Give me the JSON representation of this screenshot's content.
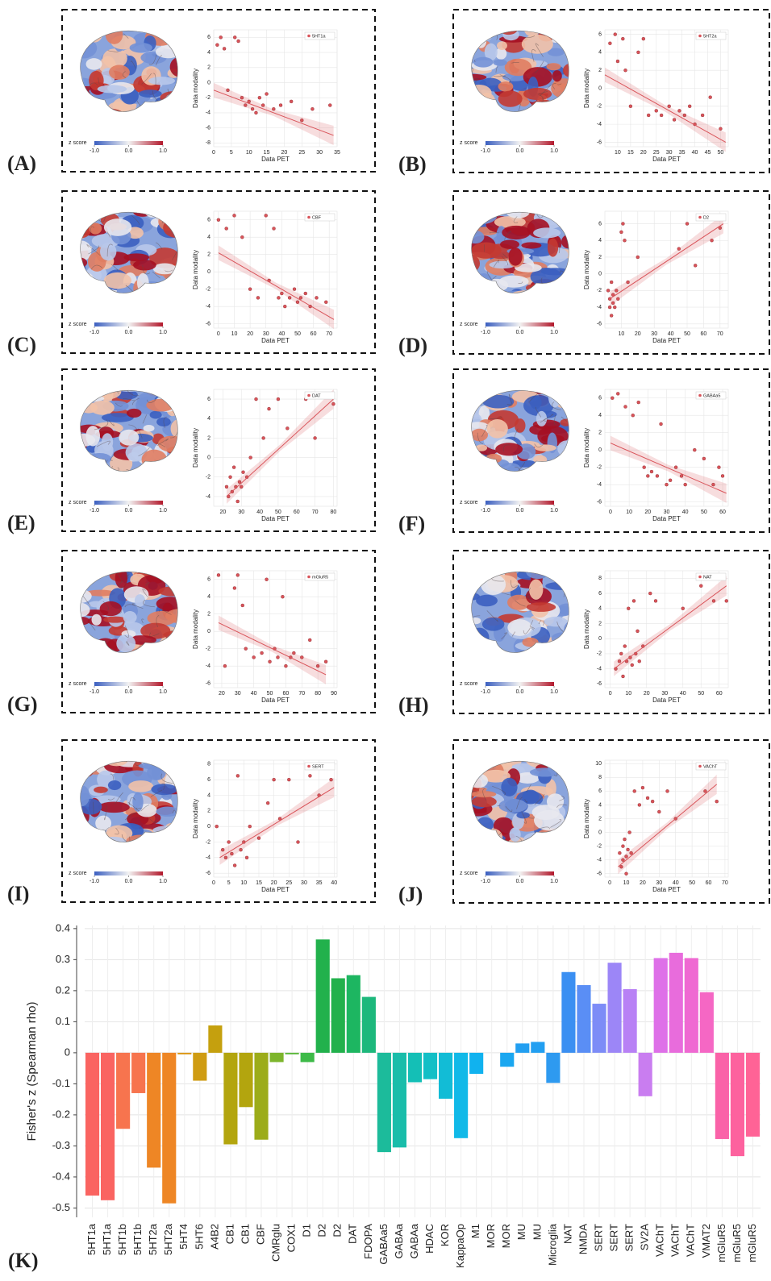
{
  "chart_data": [
    {
      "type": "scatter",
      "label": "(A)",
      "legend": "5HT1a",
      "xlabel": "Data PET",
      "ylabel": "Data modality",
      "color": "#d9545a",
      "x": [
        1,
        2,
        3,
        4,
        6,
        7,
        8,
        9,
        10,
        11,
        12,
        13,
        14,
        15,
        17,
        19,
        22,
        25,
        28,
        33
      ],
      "y": [
        5,
        6,
        4.5,
        -1,
        6,
        5.5,
        -2,
        -3,
        -2.5,
        -3.5,
        -4,
        -2,
        -3,
        -1.5,
        -3.5,
        -3,
        -2.5,
        -5,
        -3.5,
        -3
      ],
      "fit": {
        "x": [
          0,
          34
        ],
        "y": [
          -1,
          -7
        ]
      },
      "xlim": [
        0,
        35
      ],
      "ylim": [
        -8.5,
        7
      ],
      "xticks": [
        0,
        5,
        10,
        15,
        20,
        25,
        30,
        35
      ],
      "yticks": [
        -8,
        -6,
        -4,
        -2,
        0,
        2,
        4,
        6
      ],
      "colorbar": {
        "label": "z score",
        "ticks": [
          {
            "value": -1,
            "label": "-1.0"
          },
          {
            "value": 0,
            "label": "0.0"
          },
          {
            "value": 1,
            "label": "1.0"
          }
        ]
      }
    },
    {
      "type": "scatter",
      "label": "(B)",
      "legend": "5HT2a",
      "xlabel": "Data PET",
      "ylabel": "Data modality",
      "color": "#d9545a",
      "x": [
        7,
        9,
        10,
        12,
        13,
        15,
        18,
        20,
        22,
        25,
        27,
        30,
        32,
        34,
        36,
        38,
        40,
        43,
        46,
        50
      ],
      "y": [
        5,
        6,
        3,
        5.5,
        2,
        -2,
        4,
        5.5,
        -3,
        -2.5,
        -3,
        -2,
        -3.5,
        -2.5,
        -3,
        -2,
        -4,
        -3,
        -1,
        -4.5
      ],
      "fit": {
        "x": [
          5,
          52
        ],
        "y": [
          1.5,
          -6
        ]
      },
      "xlim": [
        5,
        53
      ],
      "ylim": [
        -6.5,
        6.5
      ],
      "xticks": [
        10,
        15,
        20,
        25,
        30,
        35,
        40,
        45,
        50
      ],
      "yticks": [
        -6,
        -4,
        -2,
        0,
        2,
        4,
        6
      ],
      "colorbar": {
        "label": "z score",
        "ticks": [
          {
            "value": -1,
            "label": "-1.0"
          },
          {
            "value": 0,
            "label": "0.0"
          },
          {
            "value": 1,
            "label": "1.0"
          }
        ]
      }
    },
    {
      "type": "scatter",
      "label": "(C)",
      "legend": "CBF",
      "xlabel": "Data PET",
      "ylabel": "Data modality",
      "color": "#d9545a",
      "x": [
        0,
        5,
        10,
        15,
        20,
        25,
        30,
        32,
        35,
        38,
        40,
        42,
        45,
        48,
        50,
        52,
        55,
        58,
        62,
        68
      ],
      "y": [
        6,
        5,
        6.5,
        4,
        -2,
        -3,
        6.5,
        -1,
        5,
        -3,
        -2.5,
        -4,
        -3,
        -2,
        -3.5,
        -3,
        -2.5,
        -4,
        -3,
        -3.5
      ],
      "fit": {
        "x": [
          0,
          73
        ],
        "y": [
          2.2,
          -5.5
        ]
      },
      "xlim": [
        -3,
        75
      ],
      "ylim": [
        -6.5,
        7
      ],
      "xticks": [
        0,
        10,
        20,
        30,
        40,
        50,
        60,
        70
      ],
      "yticks": [
        -6,
        -4,
        -2,
        0,
        2,
        4,
        6
      ],
      "colorbar": {
        "label": "z score",
        "ticks": [
          {
            "value": -1,
            "label": "-1.0"
          },
          {
            "value": 0,
            "label": "0.0"
          },
          {
            "value": 1,
            "label": "1.0"
          }
        ]
      }
    },
    {
      "type": "scatter",
      "label": "(D)",
      "legend": "D2",
      "xlabel": "Data PET",
      "ylabel": "Data modality",
      "color": "#d9545a",
      "x": [
        2,
        3,
        3,
        4,
        4,
        5,
        5,
        6,
        7,
        8,
        10,
        11,
        12,
        14,
        20,
        45,
        50,
        55,
        65,
        70
      ],
      "y": [
        -2,
        -4,
        -3,
        -5,
        -1,
        -3.5,
        -2.5,
        -4,
        -2,
        -3,
        5,
        6,
        4,
        -1,
        2,
        3,
        6,
        1,
        4,
        5.5
      ],
      "fit": {
        "x": [
          3,
          72
        ],
        "y": [
          -3,
          6
        ]
      },
      "xlim": [
        0,
        75
      ],
      "ylim": [
        -6.5,
        7.5
      ],
      "xticks": [
        10,
        20,
        30,
        40,
        50,
        60,
        70
      ],
      "yticks": [
        -6,
        -4,
        -2,
        0,
        2,
        4,
        6
      ],
      "colorbar": {
        "label": "z score",
        "ticks": [
          {
            "value": -1,
            "label": "-1.0"
          },
          {
            "value": 0,
            "label": "0.0"
          },
          {
            "value": 1,
            "label": "1.0"
          }
        ]
      }
    },
    {
      "type": "scatter",
      "label": "(E)",
      "legend": "DAT",
      "xlabel": "Data PET",
      "ylabel": "Data modality",
      "color": "#d9545a",
      "x": [
        22,
        23,
        24,
        25,
        26,
        27,
        28,
        29,
        30,
        31,
        33,
        35,
        38,
        42,
        45,
        50,
        55,
        65,
        70,
        80
      ],
      "y": [
        -3,
        -4,
        -2,
        -3.5,
        -1,
        -3,
        -4.5,
        -2.5,
        -3,
        -1.5,
        -2,
        0,
        6,
        2,
        5,
        6,
        3,
        6,
        2,
        5.5
      ],
      "fit": {
        "x": [
          22,
          80
        ],
        "y": [
          -4,
          6
        ]
      },
      "xlim": [
        15,
        82
      ],
      "ylim": [
        -5,
        7
      ],
      "xticks": [
        20,
        30,
        40,
        50,
        60,
        70,
        80
      ],
      "yticks": [
        -4,
        -2,
        0,
        2,
        4,
        6
      ],
      "colorbar": {
        "label": "z score",
        "ticks": [
          {
            "value": -1,
            "label": "-1.0"
          },
          {
            "value": 0,
            "label": "0.0"
          },
          {
            "value": 1,
            "label": "1.0"
          }
        ]
      }
    },
    {
      "type": "scatter",
      "label": "(F)",
      "legend": "GABAa5",
      "xlabel": "Data PET",
      "ylabel": "Data modality",
      "color": "#d9545a",
      "x": [
        1,
        4,
        8,
        12,
        15,
        18,
        20,
        22,
        25,
        27,
        30,
        32,
        35,
        38,
        40,
        45,
        50,
        55,
        58,
        60
      ],
      "y": [
        6,
        6.5,
        5,
        4,
        5.5,
        -2,
        -3,
        -2.5,
        -3,
        3,
        -4,
        -3.5,
        -2,
        -3,
        -4,
        0,
        -1,
        -4,
        -2,
        -3
      ],
      "fit": {
        "x": [
          0,
          62
        ],
        "y": [
          0.8,
          -5
        ]
      },
      "xlim": [
        -3,
        63
      ],
      "ylim": [
        -6.5,
        7
      ],
      "xticks": [
        0,
        10,
        20,
        30,
        40,
        50,
        60
      ],
      "yticks": [
        -6,
        -4,
        -2,
        0,
        2,
        4,
        6
      ],
      "colorbar": {
        "label": "z score",
        "ticks": [
          {
            "value": -1,
            "label": "-1.0"
          },
          {
            "value": 0,
            "label": "0.0"
          },
          {
            "value": 1,
            "label": "1.0"
          }
        ]
      }
    },
    {
      "type": "scatter",
      "label": "(G)",
      "legend": "mGluR5",
      "xlabel": "Data PET",
      "ylabel": "Data modality",
      "color": "#d9545a",
      "x": [
        18,
        22,
        28,
        30,
        33,
        35,
        40,
        45,
        48,
        50,
        53,
        55,
        58,
        60,
        63,
        65,
        70,
        75,
        80,
        85
      ],
      "y": [
        6.5,
        -4,
        5,
        6.5,
        3,
        -2,
        -3,
        -2.5,
        6,
        -3.5,
        -2,
        -3,
        4,
        -4,
        -3,
        -2.5,
        -3,
        -1,
        -4,
        -3.5
      ],
      "fit": {
        "x": [
          18,
          85
        ],
        "y": [
          1,
          -5
        ]
      },
      "xlim": [
        15,
        92
      ],
      "ylim": [
        -6.5,
        7
      ],
      "xticks": [
        20,
        30,
        40,
        50,
        60,
        70,
        80,
        90
      ],
      "yticks": [
        -6,
        -4,
        -2,
        0,
        2,
        4,
        6
      ],
      "colorbar": {
        "label": "z score",
        "ticks": [
          {
            "value": -1,
            "label": "-1.0"
          },
          {
            "value": 0,
            "label": "0.0"
          },
          {
            "value": 1,
            "label": "1.0"
          }
        ]
      }
    },
    {
      "type": "scatter",
      "label": "(H)",
      "legend": "NAT",
      "xlabel": "Data PET",
      "ylabel": "Data modality",
      "color": "#d9545a",
      "x": [
        3,
        5,
        6,
        7,
        8,
        9,
        10,
        11,
        12,
        13,
        14,
        15,
        16,
        18,
        22,
        25,
        40,
        50,
        57,
        64
      ],
      "y": [
        -4,
        -3,
        -2,
        -5,
        -1,
        -3,
        4,
        -2.5,
        -3.5,
        5,
        -2,
        1,
        -3,
        -1,
        6,
        5,
        4,
        7,
        5,
        5
      ],
      "fit": {
        "x": [
          2,
          64
        ],
        "y": [
          -4,
          7
        ]
      },
      "xlim": [
        -3,
        65
      ],
      "ylim": [
        -6.5,
        9
      ],
      "xticks": [
        0,
        10,
        20,
        30,
        40,
        50,
        60
      ],
      "yticks": [
        -6,
        -4,
        -2,
        0,
        2,
        4,
        6,
        8
      ],
      "colorbar": {
        "label": "z score",
        "ticks": [
          {
            "value": -1,
            "label": "-1.0"
          },
          {
            "value": 0,
            "label": "0.0"
          },
          {
            "value": 1,
            "label": "1.0"
          }
        ]
      }
    },
    {
      "type": "scatter",
      "label": "(I)",
      "legend": "SERT",
      "xlabel": "Data PET",
      "ylabel": "Data modality",
      "color": "#d9545a",
      "x": [
        1,
        3,
        4,
        5,
        6,
        7,
        8,
        9,
        10,
        11,
        12,
        15,
        18,
        20,
        22,
        25,
        28,
        32,
        35,
        39
      ],
      "y": [
        0,
        -3,
        -4,
        -2,
        -3.5,
        -5,
        6.5,
        -3,
        -2,
        -4,
        0,
        -1.5,
        3,
        6,
        1,
        6,
        -2,
        6.5,
        4,
        6
      ],
      "fit": {
        "x": [
          2,
          40
        ],
        "y": [
          -4,
          5
        ]
      },
      "xlim": [
        0,
        41
      ],
      "ylim": [
        -6.5,
        8.5
      ],
      "xticks": [
        0,
        5,
        10,
        15,
        20,
        25,
        30,
        35,
        40
      ],
      "yticks": [
        -6,
        -4,
        -2,
        0,
        2,
        4,
        6,
        8
      ],
      "colorbar": {
        "label": "z score",
        "ticks": [
          {
            "value": -1,
            "label": "-1.0"
          },
          {
            "value": 0,
            "label": "0.0"
          },
          {
            "value": 1,
            "label": "1.0"
          }
        ]
      }
    },
    {
      "type": "scatter",
      "label": "(J)",
      "legend": "VAChT",
      "xlabel": "Data PET",
      "ylabel": "Data modality",
      "color": "#d9545a",
      "x": [
        6,
        7,
        8,
        8,
        9,
        10,
        10,
        11,
        12,
        13,
        15,
        18,
        20,
        23,
        26,
        30,
        35,
        40,
        58,
        65
      ],
      "y": [
        -3,
        -5,
        -2,
        -4,
        -1,
        -3.5,
        -6,
        -2.5,
        0,
        -3,
        6,
        4,
        6.5,
        5,
        4.5,
        3,
        6,
        2,
        6,
        4.5
      ],
      "fit": {
        "x": [
          5,
          65
        ],
        "y": [
          -5,
          7
        ]
      },
      "xlim": [
        -3,
        72
      ],
      "ylim": [
        -6.5,
        10.5
      ],
      "xticks": [
        0,
        10,
        20,
        30,
        40,
        50,
        60,
        70
      ],
      "yticks": [
        -6,
        -4,
        -2,
        0,
        2,
        4,
        6,
        8,
        10
      ],
      "colorbar": {
        "label": "z score",
        "ticks": [
          {
            "value": -1,
            "label": "-1.0"
          },
          {
            "value": 0,
            "label": "0.0"
          },
          {
            "value": 1,
            "label": "1.0"
          }
        ]
      }
    },
    {
      "type": "bar",
      "label": "(K)",
      "ylabel": "Fisher's z (Spearman rho)",
      "categories": [
        "5HT1a",
        "5HT1a",
        "5HT1b",
        "5HT1b",
        "5HT2a",
        "5HT2a",
        "5HT4",
        "5HT6",
        "A4B2",
        "CB1",
        "CB1",
        "CBF",
        "CMRglu",
        "COX1",
        "D1",
        "D2",
        "D2",
        "DAT",
        "FDOPA",
        "GABAa5",
        "GABAa",
        "GABAa",
        "HDAC",
        "KOR",
        "KappaOp",
        "M1",
        "MOR",
        "MOR",
        "MU",
        "MU",
        "Microglia",
        "NAT",
        "NMDA",
        "SERT",
        "SERT",
        "SERT",
        "SV2A",
        "VAChT",
        "VAChT",
        "VAChT",
        "VMAT2",
        "mGluR5",
        "mGluR5",
        "mGluR5"
      ],
      "values": [
        -0.46,
        -0.475,
        -0.245,
        -0.13,
        -0.37,
        -0.485,
        -0.005,
        -0.09,
        0.088,
        -0.295,
        -0.175,
        -0.28,
        -0.03,
        -0.005,
        -0.03,
        0.365,
        0.24,
        0.25,
        0.18,
        -0.32,
        -0.305,
        -0.095,
        -0.085,
        -0.148,
        -0.275,
        -0.068,
        0,
        -0.045,
        0.03,
        0.035,
        -0.097,
        0.26,
        0.218,
        0.158,
        0.29,
        0.205,
        -0.14,
        0.305,
        0.322,
        0.305,
        0.195,
        -0.278,
        -0.333,
        -0.27
      ],
      "colors": [
        "#fa6461",
        "#fa6461",
        "#f7744e",
        "#f7744e",
        "#ee8625",
        "#ee8625",
        "#dc9612",
        "#cf9c12",
        "#c5a00e",
        "#b3a50e",
        "#b3a50e",
        "#9cac1a",
        "#7db52c",
        "#5bb83a",
        "#3dba48",
        "#22b14c",
        "#22b14c",
        "#1db661",
        "#1db87c",
        "#1cbb9b",
        "#19bdaa",
        "#14bfb6",
        "#12bfc6",
        "#12bcd6",
        "#11b9e8",
        "#10b2ef",
        "#1aa7f0",
        "#1aa7f0",
        "#229ff1",
        "#229ff1",
        "#2e9af0",
        "#3a8ff2",
        "#5a8ef5",
        "#7d8cf7",
        "#9c86f7",
        "#b881f5",
        "#c97df0",
        "#de70e8",
        "#e86cdc",
        "#ef69d2",
        "#f567c4",
        "#fa62a8",
        "#fd629e",
        "#ff6396"
      ],
      "ylim": [
        -0.53,
        0.41
      ],
      "yticks": [
        -0.5,
        -0.4,
        -0.3,
        -0.2,
        -0.1,
        0,
        0.1,
        0.2,
        0.3,
        0.4
      ],
      "grid": true
    }
  ]
}
